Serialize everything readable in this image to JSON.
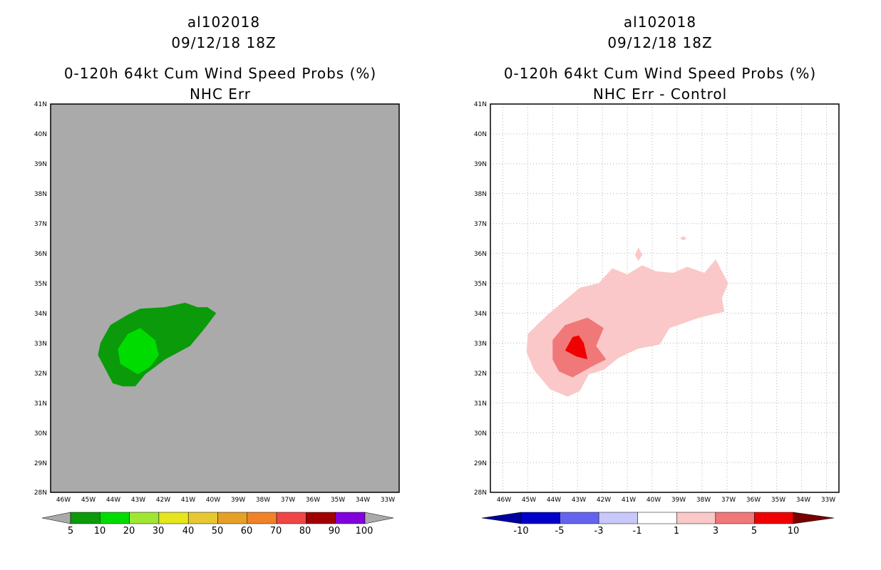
{
  "chart_data": [
    {
      "type": "contour-map",
      "title_lines": [
        "al102018",
        "09/12/18 18Z",
        "0-120h 64kt Cum Wind Speed Probs (%)",
        "NHC Err"
      ],
      "y_ticks": [
        "41N",
        "40N",
        "39N",
        "38N",
        "37N",
        "36N",
        "35N",
        "34N",
        "33N",
        "32N",
        "31N",
        "30N",
        "29N",
        "28N"
      ],
      "x_ticks": [
        "46W",
        "45W",
        "44W",
        "43W",
        "42W",
        "41W",
        "40W",
        "39W",
        "38W",
        "37W",
        "36W",
        "35W",
        "34W",
        "33W"
      ],
      "background": "#aaaaaa",
      "contours": [
        {
          "threshold": 5,
          "color": "#0a9a0a",
          "polygon": [
            [
              -44.6,
              32.6
            ],
            [
              -44.5,
              33.0
            ],
            [
              -44.1,
              33.6
            ],
            [
              -43.4,
              33.95
            ],
            [
              -42.9,
              34.15
            ],
            [
              -41.9,
              34.2
            ],
            [
              -41.1,
              34.35
            ],
            [
              -40.6,
              34.2
            ],
            [
              -40.2,
              34.2
            ],
            [
              -39.85,
              34.0
            ],
            [
              -40.3,
              33.5
            ],
            [
              -40.9,
              32.9
            ],
            [
              -41.9,
              32.45
            ],
            [
              -42.7,
              31.95
            ],
            [
              -43.1,
              31.55
            ],
            [
              -43.6,
              31.55
            ],
            [
              -44.0,
              31.65
            ],
            [
              -44.35,
              32.2
            ]
          ]
        },
        {
          "threshold": 10,
          "color": "#00dc00",
          "polygon": [
            [
              -43.7,
              32.3
            ],
            [
              -43.8,
              32.8
            ],
            [
              -43.4,
              33.3
            ],
            [
              -42.9,
              33.5
            ],
            [
              -42.3,
              33.1
            ],
            [
              -42.15,
              32.6
            ],
            [
              -42.5,
              32.2
            ],
            [
              -43.0,
              31.95
            ]
          ]
        }
      ],
      "colorbar": {
        "labels": [
          "5",
          "10",
          "20",
          "30",
          "40",
          "50",
          "60",
          "70",
          "80",
          "90",
          "100"
        ],
        "colors": [
          "#0a9a0a",
          "#00dc00",
          "#a0e632",
          "#e6e61e",
          "#e6c832",
          "#e6a028",
          "#f08228",
          "#f04646",
          "#a00000",
          "#8200dc"
        ]
      }
    },
    {
      "type": "contour-map",
      "title_lines": [
        "al102018",
        "09/12/18 18Z",
        "0-120h 64kt Cum Wind Speed Probs (%)",
        "NHC Err - Control"
      ],
      "y_ticks": [
        "41N",
        "40N",
        "39N",
        "38N",
        "37N",
        "36N",
        "35N",
        "34N",
        "33N",
        "32N",
        "31N",
        "30N",
        "29N",
        "28N"
      ],
      "x_ticks": [
        "46W",
        "45W",
        "44W",
        "43W",
        "42W",
        "41W",
        "40W",
        "39W",
        "38W",
        "37W",
        "36W",
        "35W",
        "34W",
        "33W"
      ],
      "background": "#ffffff",
      "contours": [
        {
          "threshold": 1,
          "color": "#fac8c8",
          "polygon": [
            [
              -45.0,
              33.3
            ],
            [
              -44.2,
              33.95
            ],
            [
              -43.55,
              34.4
            ],
            [
              -42.9,
              34.85
            ],
            [
              -42.15,
              35.0
            ],
            [
              -41.6,
              35.5
            ],
            [
              -41.0,
              35.3
            ],
            [
              -40.4,
              35.6
            ],
            [
              -39.85,
              35.4
            ],
            [
              -39.15,
              35.35
            ],
            [
              -38.6,
              35.55
            ],
            [
              -37.9,
              35.35
            ],
            [
              -37.45,
              35.8
            ],
            [
              -36.95,
              35.0
            ],
            [
              -37.2,
              34.5
            ],
            [
              -37.1,
              34.05
            ],
            [
              -38.1,
              33.85
            ],
            [
              -39.3,
              33.5
            ],
            [
              -39.7,
              32.95
            ],
            [
              -40.6,
              32.8
            ],
            [
              -41.35,
              32.5
            ],
            [
              -41.95,
              32.1
            ],
            [
              -42.55,
              31.95
            ],
            [
              -42.9,
              31.4
            ],
            [
              -43.4,
              31.2
            ],
            [
              -44.1,
              31.45
            ],
            [
              -44.75,
              32.1
            ],
            [
              -45.05,
              32.7
            ]
          ]
        },
        {
          "threshold": 1,
          "color": "#fac8c8",
          "polygon": [
            [
              -40.55,
              36.2
            ],
            [
              -40.4,
              35.95
            ],
            [
              -40.55,
              35.75
            ],
            [
              -40.7,
              35.95
            ]
          ]
        },
        {
          "threshold": 1,
          "color": "#fac8c8",
          "polygon": [
            [
              -38.75,
              36.58
            ],
            [
              -38.62,
              36.5
            ],
            [
              -38.75,
              36.44
            ],
            [
              -38.88,
              36.5
            ]
          ]
        },
        {
          "threshold": 3,
          "color": "#f07878",
          "polygon": [
            [
              -44.0,
              32.45
            ],
            [
              -44.0,
              33.1
            ],
            [
              -43.5,
              33.6
            ],
            [
              -42.6,
              33.85
            ],
            [
              -41.95,
              33.5
            ],
            [
              -42.25,
              32.9
            ],
            [
              -41.85,
              32.45
            ],
            [
              -42.45,
              32.2
            ],
            [
              -43.2,
              31.85
            ],
            [
              -43.75,
              32.05
            ]
          ]
        },
        {
          "threshold": 5,
          "color": "#f00000",
          "polygon": [
            [
              -43.5,
              32.75
            ],
            [
              -43.2,
              33.2
            ],
            [
              -42.95,
              33.25
            ],
            [
              -42.75,
              33.0
            ],
            [
              -42.6,
              32.45
            ],
            [
              -43.05,
              32.55
            ]
          ]
        }
      ],
      "colorbar": {
        "labels": [
          "-10",
          "-5",
          "-3",
          "-1",
          "1",
          "3",
          "5",
          "10"
        ],
        "colors": [
          "#0000c8",
          "#6464f0",
          "#c8c8fa",
          "#ffffff",
          "#fac8c8",
          "#f07878",
          "#f00000"
        ],
        "left_arrow_color": "#0000a0",
        "right_arrow_color": "#780000"
      }
    }
  ]
}
